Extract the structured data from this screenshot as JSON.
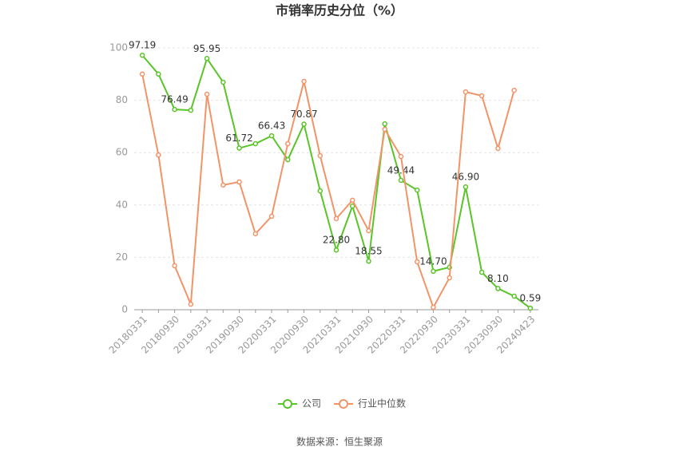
{
  "chart_data": {
    "type": "line",
    "title": "市销率历史分位（%）",
    "source": "数据来源：恒生聚源",
    "categories": [
      "20180331",
      null,
      "20180930",
      null,
      "20190331",
      null,
      "20190930",
      null,
      "20200331",
      null,
      "20200930",
      null,
      "20210331",
      null,
      "20210930",
      null,
      "20220331",
      null,
      "20220930",
      null,
      "20230331",
      null,
      "20230930",
      null,
      "20240423"
    ],
    "series": [
      {
        "name": "公司",
        "color": "#5ac428",
        "values": [
          97.19,
          90,
          76.49,
          76.2,
          95.95,
          86.9,
          61.72,
          63.4,
          66.43,
          57.3,
          70.87,
          45.4,
          22.8,
          39.6,
          18.55,
          71.0,
          49.44,
          45.7,
          14.7,
          16.2,
          46.9,
          14.3,
          8.1,
          5.2,
          0.59
        ],
        "value_labels": [
          "97.19",
          null,
          "76.49",
          null,
          "95.95",
          null,
          "61.72",
          null,
          "66.43",
          null,
          "70.87",
          null,
          "22.80",
          null,
          "18.55",
          null,
          "49.44",
          null,
          "14.70",
          null,
          "46.90",
          null,
          "8.10",
          null,
          "0.59"
        ]
      },
      {
        "name": "行业中位数",
        "color": "#f29468",
        "values": [
          90,
          59.1,
          16.8,
          2.1,
          82.3,
          47.6,
          48.8,
          29,
          35.7,
          63.4,
          87.2,
          58.8,
          34.8,
          41.8,
          30.2,
          68.9,
          58.5,
          18.3,
          0.9,
          12.2,
          83.2,
          81.7,
          61.6,
          83.8,
          null
        ]
      }
    ],
    "ylim": [
      0,
      100
    ],
    "yticks": [
      0,
      20,
      40,
      60,
      80,
      100
    ],
    "grid": true
  }
}
